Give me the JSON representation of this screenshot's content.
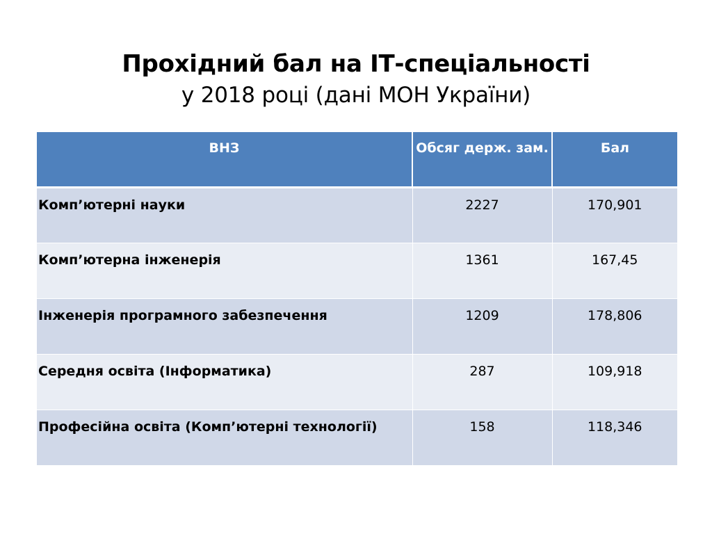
{
  "title": {
    "main": "Прохідний бал на ІТ-спеціальності",
    "sub": "у 2018 році (дані МОН України)"
  },
  "table": {
    "headers": [
      "ВНЗ",
      "Обсяг держ. зам.",
      "Бал"
    ],
    "rows": [
      [
        "Комп’ютерні науки",
        "2227",
        "170,901"
      ],
      [
        "Комп’ютерна інженерія",
        "1361",
        "167,45"
      ],
      [
        "Інженерія програмного забезпечення",
        "1209",
        "178,806"
      ],
      [
        "Середня освіта (Інформатика)",
        "287",
        "109,918"
      ],
      [
        "Професійна освіта (Комп’ютерні технології)",
        "158",
        "118,346"
      ]
    ]
  },
  "colors": {
    "header_bg": "#4f81bd",
    "header_text": "#ffffff",
    "row_odd_bg": "#d0d8e8",
    "row_even_bg": "#e9edf4"
  }
}
